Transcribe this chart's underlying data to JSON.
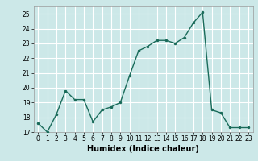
{
  "x": [
    0,
    1,
    2,
    3,
    4,
    5,
    6,
    7,
    8,
    9,
    10,
    11,
    12,
    13,
    14,
    15,
    16,
    17,
    18,
    19,
    20,
    21,
    22,
    23
  ],
  "y": [
    17.6,
    17.0,
    18.2,
    19.8,
    19.2,
    19.2,
    17.7,
    18.5,
    18.7,
    19.0,
    20.8,
    22.5,
    22.8,
    23.2,
    23.2,
    23.0,
    23.4,
    24.4,
    25.1,
    18.5,
    18.3,
    17.3,
    17.3,
    17.3
  ],
  "line_color": "#1a6b5a",
  "marker": ".",
  "marker_size": 3,
  "bg_color": "#cce8e8",
  "grid_color": "#ffffff",
  "xlabel": "Humidex (Indice chaleur)",
  "ylim": [
    17,
    25.5
  ],
  "xlim": [
    -0.5,
    23.5
  ],
  "yticks": [
    17,
    18,
    19,
    20,
    21,
    22,
    23,
    24,
    25
  ],
  "xticks": [
    0,
    1,
    2,
    3,
    4,
    5,
    6,
    7,
    8,
    9,
    10,
    11,
    12,
    13,
    14,
    15,
    16,
    17,
    18,
    19,
    20,
    21,
    22,
    23
  ],
  "tick_label_size": 5.5,
  "xlabel_size": 7,
  "line_width": 1.0
}
